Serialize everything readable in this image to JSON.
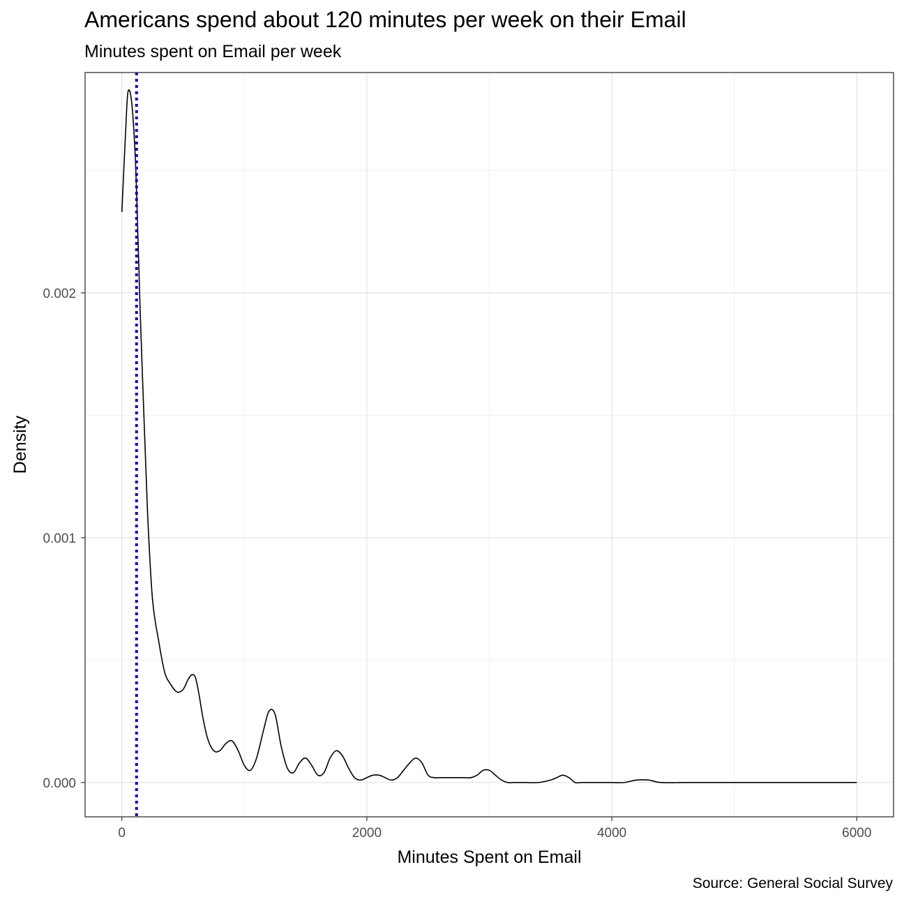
{
  "chart_data": {
    "type": "area",
    "title": "Americans spend about 120 minutes per week on their Email",
    "subtitle": "Minutes spent on Email per week",
    "caption": "Source: General Social Survey",
    "xlabel": "Minutes Spent on Email",
    "ylabel": "Density",
    "xlim": [
      -300,
      6300
    ],
    "ylim": [
      -0.00014,
      0.0029
    ],
    "x_ticks": [
      0,
      2000,
      4000,
      6000
    ],
    "x_tick_labels": [
      "0",
      "2000",
      "4000",
      "6000"
    ],
    "y_ticks": [
      0.0,
      0.001,
      0.002
    ],
    "y_tick_labels": [
      "0.000",
      "0.001",
      "0.002"
    ],
    "grid": true,
    "reference_line": {
      "x": 120,
      "style": "dotted",
      "color": "#0000cc"
    },
    "line_color": "#000000",
    "series": [
      {
        "x": [
          0,
          30,
          50,
          80,
          110,
          130,
          150,
          180,
          210,
          250,
          300,
          350,
          400,
          450,
          500,
          540,
          570,
          600,
          630,
          660,
          700,
          750,
          800,
          850,
          900,
          950,
          1000,
          1050,
          1100,
          1150,
          1200,
          1250,
          1300,
          1350,
          1400,
          1450,
          1500,
          1550,
          1600,
          1650,
          1700,
          1750,
          1800,
          1850,
          1900,
          1950,
          2000,
          2050,
          2100,
          2150,
          2200,
          2250,
          2300,
          2350,
          2400,
          2450,
          2500,
          2550,
          2600,
          2650,
          2700,
          2750,
          2800,
          2850,
          2900,
          2950,
          3000,
          3050,
          3100,
          3150,
          3200,
          3300,
          3400,
          3500,
          3550,
          3600,
          3650,
          3700,
          3750,
          3800,
          4000,
          4100,
          4200,
          4300,
          4400,
          4600,
          4800,
          5000,
          5200,
          5400,
          5600,
          5800,
          6000
        ],
        "y": [
          0.00233,
          0.00265,
          0.00282,
          0.00278,
          0.00255,
          0.00225,
          0.00192,
          0.0015,
          0.0011,
          0.00075,
          0.00058,
          0.00045,
          0.0004,
          0.00037,
          0.00038,
          0.00042,
          0.00044,
          0.00043,
          0.00036,
          0.00027,
          0.00018,
          0.00013,
          0.00013,
          0.00016,
          0.00017,
          0.00013,
          7e-05,
          5e-05,
          0.0001,
          0.0002,
          0.00029,
          0.00028,
          0.00015,
          6e-05,
          4e-05,
          8e-05,
          0.0001,
          7e-05,
          3e-05,
          4e-05,
          0.0001,
          0.00013,
          0.00011,
          6e-05,
          2e-05,
          1e-05,
          2e-05,
          3e-05,
          3e-05,
          2e-05,
          1e-05,
          2e-05,
          5e-05,
          8e-05,
          0.0001,
          8e-05,
          3e-05,
          2e-05,
          2e-05,
          2e-05,
          2e-05,
          2e-05,
          2e-05,
          2e-05,
          3e-05,
          5e-05,
          5e-05,
          3e-05,
          1e-05,
          0.0,
          0.0,
          0.0,
          0.0,
          1e-05,
          2e-05,
          3e-05,
          2e-05,
          0.0,
          0.0,
          0.0,
          0.0,
          0.0,
          1e-05,
          1e-05,
          0.0,
          0.0,
          0.0,
          0.0,
          0.0,
          0.0,
          0.0,
          0.0,
          0.0
        ]
      }
    ]
  }
}
